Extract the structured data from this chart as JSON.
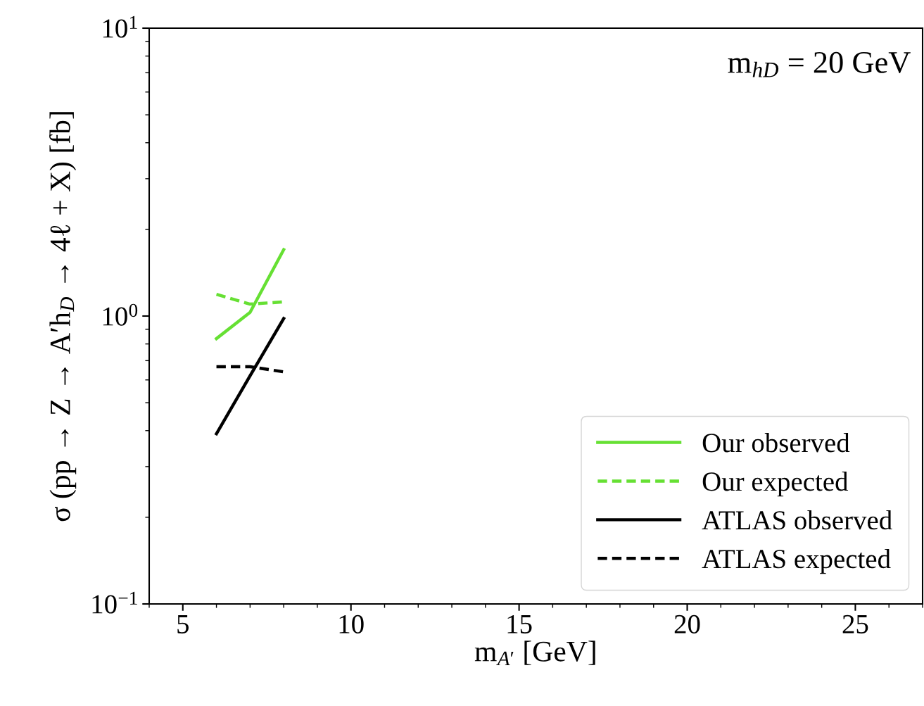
{
  "chart_data": {
    "type": "line",
    "xlabel": "m$_{A′}$ [GeV]",
    "ylabel": "σ (pp → Z → A′h$_{D}$ → 4ℓ + X) [fb]",
    "annotations": [
      "m$_{hD}$ = 20 GeV"
    ],
    "series": [
      {
        "name": "Our observed",
        "color": "#66e033",
        "line_style": "solid",
        "x": [
          6,
          7,
          8
        ],
        "values": [
          0.835,
          1.03,
          1.7
        ]
      },
      {
        "name": "Our expected",
        "color": "#66e033",
        "line_style": "dashed",
        "x": [
          6,
          7,
          8
        ],
        "values": [
          1.19,
          1.1,
          1.12
        ]
      },
      {
        "name": "ATLAS observed",
        "color": "#000000",
        "line_style": "solid",
        "x": [
          6,
          7,
          8
        ],
        "values": [
          0.39,
          0.62,
          0.98
        ]
      },
      {
        "name": "ATLAS expected",
        "color": "#000000",
        "line_style": "dashed",
        "x": [
          6,
          7,
          8
        ],
        "values": [
          0.667,
          0.667,
          0.64
        ]
      }
    ],
    "log": "y",
    "xlim": [
      4,
      27
    ],
    "xticks": [
      5,
      10,
      15,
      20,
      25
    ],
    "ylim": [
      0.1,
      10
    ],
    "yticks": [
      {
        "value": 0.1,
        "label": "10$^{−1}$"
      },
      {
        "value": 1,
        "label": "10$^{0}$"
      },
      {
        "value": 10,
        "label": "10$^{1}$"
      }
    ],
    "grid": false,
    "legend": "lower right",
    "marker": "none"
  }
}
